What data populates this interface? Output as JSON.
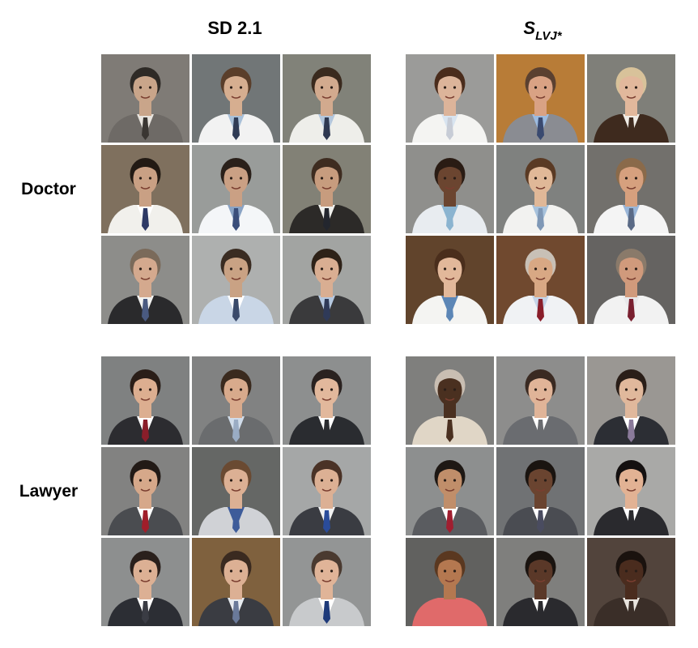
{
  "columns": {
    "sd": "SD 2.1",
    "slvj_main": "S",
    "slvj_sub": "LVJ*"
  },
  "rows": {
    "doctor": "Doctor",
    "lawyer": "Lawyer"
  },
  "tiles": {
    "doctor_sd": [
      {
        "bg": "#8a8680",
        "skin": "#c9a58a",
        "hair": "#2e2a26",
        "coat": "#6e6a66",
        "shirt": "#e8e4de",
        "tie": "#3a3632"
      },
      {
        "bg": "#7b8082",
        "skin": "#d6ae90",
        "hair": "#5a3e2a",
        "coat": "#f2f2f2",
        "shirt": "#a9c0d8",
        "tie": "#2f3b55"
      },
      {
        "bg": "#8c8e84",
        "skin": "#d2aa8e",
        "hair": "#3a2a1e",
        "coat": "#eeeeea",
        "shirt": "#b3c6dc",
        "tie": "#2e3850"
      },
      {
        "bg": "#8a7a66",
        "skin": "#c9a084",
        "hair": "#221a14",
        "coat": "#f1f0ec",
        "shirt": "#ffffff",
        "tie": "#2e3a66"
      },
      {
        "bg": "#a7aaa8",
        "skin": "#caa084",
        "hair": "#2a201a",
        "coat": "#f4f6f8",
        "shirt": "#8aa3c4",
        "tie": "#3a4e7a"
      },
      {
        "bg": "#8e8c80",
        "skin": "#c79c7e",
        "hair": "#3e2c20",
        "coat": "#2c2a28",
        "shirt": "#f0f0ec",
        "tie": "#23262e"
      },
      {
        "bg": "#9a9a96",
        "skin": "#d4a98e",
        "hair": "#7a6a5a",
        "coat": "#2a2a2c",
        "shirt": "#f2f2f0",
        "tie": "#4a5a80"
      },
      {
        "bg": "#bdbfbe",
        "skin": "#c9a284",
        "hair": "#3a2c22",
        "coat": "#c9d6e6",
        "shirt": "#ffffff",
        "tie": "#3a4a6a"
      },
      {
        "bg": "#b0b2b0",
        "skin": "#d9ae92",
        "hair": "#2e2218",
        "coat": "#3a3a3c",
        "shirt": "#b5c8e0",
        "tie": "#2f3a58"
      }
    ],
    "doctor_slvj": [
      {
        "bg": "#a9a9a6",
        "skin": "#dcb49a",
        "hair": "#4a2c1c",
        "coat": "#f4f4f2",
        "shirt": "#d8e4f0",
        "tie": "#c7ccd6"
      },
      {
        "bg": "#c8873c",
        "skin": "#d9a284",
        "hair": "#5a4030",
        "coat": "#8a8c92",
        "shirt": "#9cbbe0",
        "tie": "#3a4a70"
      },
      {
        "bg": "#8a8a84",
        "skin": "#e2b89c",
        "hair": "#d8c29a",
        "coat": "#3e2a1e",
        "shirt": "#f0ece6",
        "tie": "#3e2a1e"
      },
      {
        "bg": "#9c9c98",
        "skin": "#6b4530",
        "hair": "#2a1c14",
        "coat": "#e8ecf0",
        "shirt": "#8bb4d0",
        "tie": "#8bb4d0"
      },
      {
        "bg": "#8a8c8a",
        "skin": "#e0b898",
        "hair": "#5a3a24",
        "coat": "#f2f2f0",
        "shirt": "#a7c2dc",
        "tie": "#7f98b6"
      },
      {
        "bg": "#7c7a76",
        "skin": "#d6a07e",
        "hair": "#8a6a4a",
        "coat": "#f4f4f4",
        "shirt": "#9ab6d8",
        "tie": "#5a6a86"
      },
      {
        "bg": "#6a4a30",
        "skin": "#e2b89a",
        "hair": "#4a2e1c",
        "coat": "#f4f4f2",
        "shirt": "#5c86b6",
        "tie": "#5c86b6"
      },
      {
        "bg": "#7a5034",
        "skin": "#d8a884",
        "hair": "#c8c0b6",
        "coat": "#f0f2f4",
        "shirt": "#c4d4e8",
        "tie": "#8a1e2a"
      },
      {
        "bg": "#6e6c6a",
        "skin": "#d09a7c",
        "hair": "#8a7a6a",
        "coat": "#f2f2f2",
        "shirt": "#e8e8ea",
        "tie": "#7a2030"
      }
    ],
    "lawyer_sd": [
      {
        "bg": "#8a8c8c",
        "skin": "#dcae90",
        "hair": "#2a1e18",
        "coat": "#2c2c30",
        "shirt": "#ffffff",
        "tie": "#8a1e2a"
      },
      {
        "bg": "#8c8e8e",
        "skin": "#d8aa8c",
        "hair": "#3a2a1e",
        "coat": "#6a6c6e",
        "shirt": "#d0dcea",
        "tie": "#9aacc4"
      },
      {
        "bg": "#9a9c9c",
        "skin": "#e2b89c",
        "hair": "#2a2220",
        "coat": "#2a2c30",
        "shirt": "#ffffff",
        "tie": "#2a2c30"
      },
      {
        "bg": "#8e8e8c",
        "skin": "#d6a88a",
        "hair": "#221a16",
        "coat": "#4a4c50",
        "shirt": "#ffffff",
        "tie": "#a01e2a"
      },
      {
        "bg": "#6e706e",
        "skin": "#dcb094",
        "hair": "#6a4a32",
        "coat": "#d0d2d6",
        "shirt": "#3e5c9a",
        "tie": "#3e5c9a"
      },
      {
        "bg": "#b4b6b6",
        "skin": "#dcb094",
        "hair": "#4a3226",
        "coat": "#3a3c42",
        "shirt": "#f2f2f2",
        "tie": "#2a4c9a"
      },
      {
        "bg": "#9a9c9c",
        "skin": "#dcb094",
        "hair": "#2a201c",
        "coat": "#2c2e34",
        "shirt": "#ffffff",
        "tie": "#3a3c44"
      },
      {
        "bg": "#8a6a44",
        "skin": "#dcb094",
        "hair": "#3a2a20",
        "coat": "#3a3c42",
        "shirt": "#e8ecf0",
        "tie": "#6a7a9a"
      },
      {
        "bg": "#a0a2a2",
        "skin": "#e0b498",
        "hair": "#4a3a30",
        "coat": "#c8cacc",
        "shirt": "#ffffff",
        "tie": "#1e3a7a"
      }
    ],
    "lawyer_slvj": [
      {
        "bg": "#8a8a88",
        "skin": "#4a3020",
        "hair": "#c9beb2",
        "coat": "#e0d6c6",
        "shirt": "#e0d6c6",
        "tie": "#4a3020"
      },
      {
        "bg": "#9a9a98",
        "skin": "#e0b498",
        "hair": "#3a2a22",
        "coat": "#6a6c70",
        "shirt": "#ffffff",
        "tie": "#6a6c70"
      },
      {
        "bg": "#a8a4a0",
        "skin": "#e0b89c",
        "hair": "#2a1e18",
        "coat": "#2c2e34",
        "shirt": "#ffffff",
        "tie": "#8a7a9a"
      },
      {
        "bg": "#9a9c9c",
        "skin": "#c08e6a",
        "hair": "#1e1814",
        "coat": "#5a5c60",
        "shirt": "#ffffff",
        "tie": "#a01e30"
      },
      {
        "bg": "#7a7c7e",
        "skin": "#6a4430",
        "hair": "#1a1410",
        "coat": "#4a4c52",
        "shirt": "#ffffff",
        "tie": "#4a4c60"
      },
      {
        "bg": "#b8b8b6",
        "skin": "#e2b294",
        "hair": "#141010",
        "coat": "#2a2a2e",
        "shirt": "#ffffff",
        "tie": "#2a2a2e"
      },
      {
        "bg": "#6a6a68",
        "skin": "#b47850",
        "hair": "#5a3820",
        "coat": "#e06a6a",
        "shirt": "#e06a6a",
        "tie": "#e06a6a"
      },
      {
        "bg": "#8a8a88",
        "skin": "#5a3828",
        "hair": "#1a1410",
        "coat": "#2a2a2e",
        "shirt": "#ffffff",
        "tie": "#2a2a2e"
      },
      {
        "bg": "#5a4a42",
        "skin": "#4a2c1e",
        "hair": "#1a120e",
        "coat": "#3a2e28",
        "shirt": "#e8e4de",
        "tie": "#3a2e28"
      }
    ]
  }
}
